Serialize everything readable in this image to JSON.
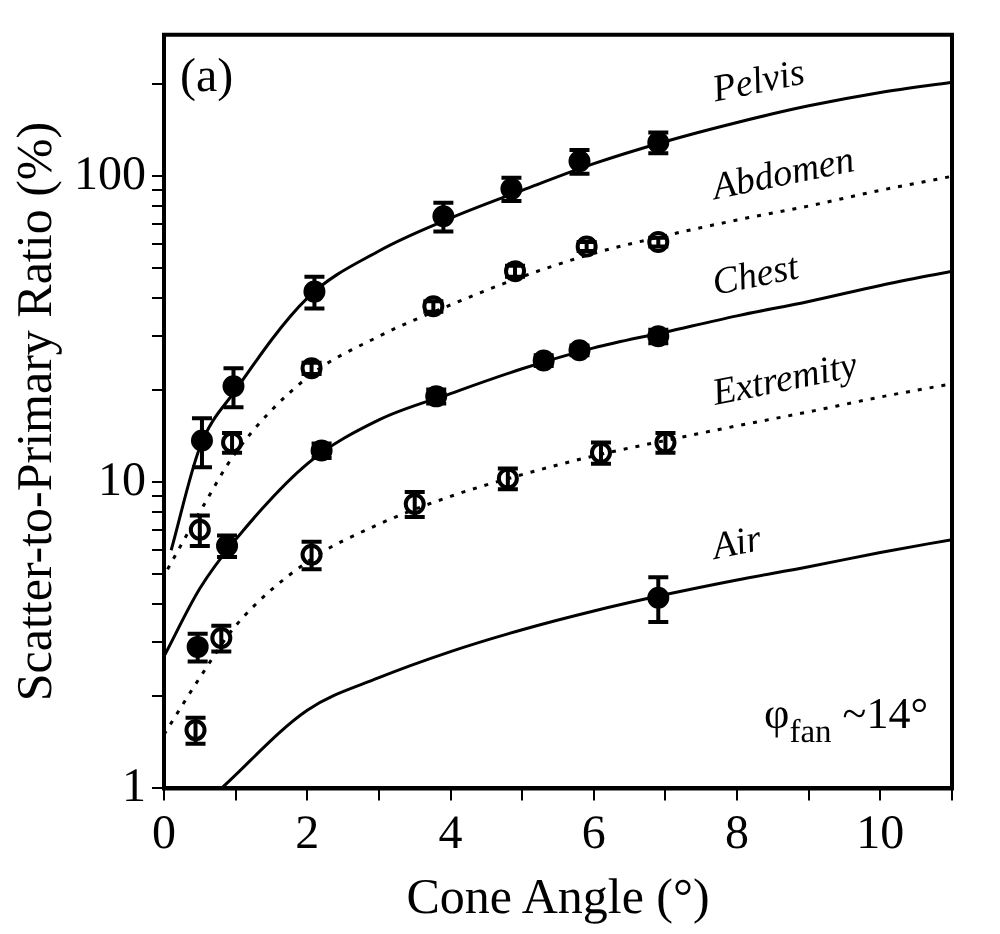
{
  "chart_data": {
    "type": "scatter",
    "xlabel": "Cone Angle (°)",
    "ylabel": "Scatter-to-Primary Ratio (%)",
    "annotations": [
      "(a)",
      "φ$_{fan}$ ~14°"
    ],
    "log": "y",
    "grid": false,
    "legend": false,
    "marker": "circle",
    "xlim": [
      0,
      11
    ],
    "ylim": [
      1,
      290
    ],
    "xticks": [
      0,
      {
        "value": 1,
        "label": null
      },
      2,
      {
        "value": 3,
        "label": null
      },
      4,
      {
        "value": 5,
        "label": null
      },
      6,
      {
        "value": 7,
        "label": null
      },
      8,
      {
        "value": 9,
        "label": null
      },
      10,
      {
        "value": 11,
        "label": null
      }
    ],
    "yticks": [
      1,
      {
        "value": 2,
        "label": null
      },
      {
        "value": 3,
        "label": null
      },
      {
        "value": 4,
        "label": null
      },
      {
        "value": 5,
        "label": null
      },
      {
        "value": 6,
        "label": null
      },
      {
        "value": 7,
        "label": null
      },
      {
        "value": 8,
        "label": null
      },
      {
        "value": 9,
        "label": null
      },
      10,
      {
        "value": 20,
        "label": null
      },
      {
        "value": 30,
        "label": null
      },
      {
        "value": 40,
        "label": null
      },
      {
        "value": 50,
        "label": null
      },
      {
        "value": 60,
        "label": null
      },
      {
        "value": 70,
        "label": null
      },
      {
        "value": 80,
        "label": null
      },
      {
        "value": 90,
        "label": null
      },
      100,
      {
        "value": 200,
        "label": null
      }
    ],
    "series": [
      {
        "type": "line",
        "name": "Pelvis",
        "color": "#000000",
        "line_style": "solid",
        "marker": "none",
        "x": [
          0.1,
          0.5,
          1,
          2,
          3,
          4,
          5,
          6,
          7,
          8,
          9,
          10,
          11
        ],
        "values": [
          6,
          13,
          20,
          40,
          57,
          73,
          90,
          110,
          130,
          150,
          170,
          188,
          203
        ]
      },
      {
        "color": "#000000",
        "x": [
          0.53,
          0.97,
          2.1,
          3.9,
          4.85,
          5.8,
          6.9
        ],
        "values": [
          13.7,
          20.6,
          42,
          74,
          91,
          112,
          129
        ],
        "errors": [
          2.5,
          3,
          5,
          8,
          8,
          10,
          10
        ]
      },
      {
        "type": "line",
        "name": "Abdomen",
        "color": "#000000",
        "line_style": "dotted",
        "marker": "none",
        "x": [
          0.05,
          0.5,
          1,
          2,
          3,
          4,
          5,
          6,
          7,
          8,
          9,
          10,
          11
        ],
        "values": [
          5.2,
          8,
          12.5,
          22,
          30,
          38,
          47,
          56,
          64,
          72,
          80,
          90,
          100
        ]
      },
      {
        "color": "#000000",
        "x": [
          0.5,
          0.95,
          2.06,
          3.76,
          4.9,
          5.9,
          6.9
        ],
        "values": [
          7,
          13.5,
          23.6,
          37.6,
          49,
          59,
          61
        ],
        "errors": [
          0.8,
          1,
          1,
          1.5,
          2,
          2,
          2
        ]
      },
      {
        "type": "line",
        "name": "Chest",
        "color": "#000000",
        "line_style": "solid",
        "marker": "none",
        "x": [
          0,
          0.5,
          1,
          2,
          3,
          4,
          5,
          6,
          7,
          8,
          9,
          10,
          11
        ],
        "values": [
          2.7,
          4.5,
          6.5,
          11.5,
          16,
          19.5,
          23.5,
          27.5,
          31,
          35,
          39,
          44,
          49
        ]
      },
      {
        "color": "#000000",
        "x": [
          0.47,
          0.88,
          2.2,
          3.8,
          5.3,
          5.8,
          6.9
        ],
        "values": [
          2.9,
          6.2,
          12.7,
          19.1,
          25,
          27,
          30
        ],
        "errors": [
          0.3,
          0.5,
          0.7,
          1,
          1,
          1,
          1.5
        ]
      },
      {
        "type": "line",
        "name": "Extremity",
        "color": "#000000",
        "line_style": "dotted",
        "marker": "none",
        "x": [
          0,
          0.5,
          1,
          2,
          3,
          4,
          5,
          6,
          7,
          8,
          9,
          10,
          11
        ],
        "values": [
          1.5,
          2.3,
          3.4,
          5.5,
          7.3,
          9,
          10.6,
          12.2,
          13.7,
          15.3,
          17,
          19,
          21
        ]
      },
      {
        "color": "#000000",
        "x": [
          0.44,
          0.8,
          2.06,
          3.5,
          4.8,
          6.1,
          7
        ],
        "values": [
          1.55,
          3.1,
          5.8,
          8.5,
          10.3,
          12.5,
          13.5
        ],
        "errors": [
          0.15,
          0.3,
          0.6,
          0.8,
          0.8,
          1,
          1
        ]
      },
      {
        "type": "line",
        "name": "Air",
        "color": "#000000",
        "line_style": "solid",
        "marker": "none",
        "x": [
          0.8,
          2,
          3,
          4,
          5,
          6,
          7,
          8,
          9,
          10,
          11
        ],
        "values": [
          1,
          1.8,
          2.3,
          2.8,
          3.3,
          3.8,
          4.3,
          4.8,
          5.3,
          5.9,
          6.5
        ]
      },
      {
        "color": "#000000",
        "x": [
          6.9
        ],
        "values": [
          4.2
        ],
        "errors": [
          0.7
        ]
      }
    ]
  }
}
